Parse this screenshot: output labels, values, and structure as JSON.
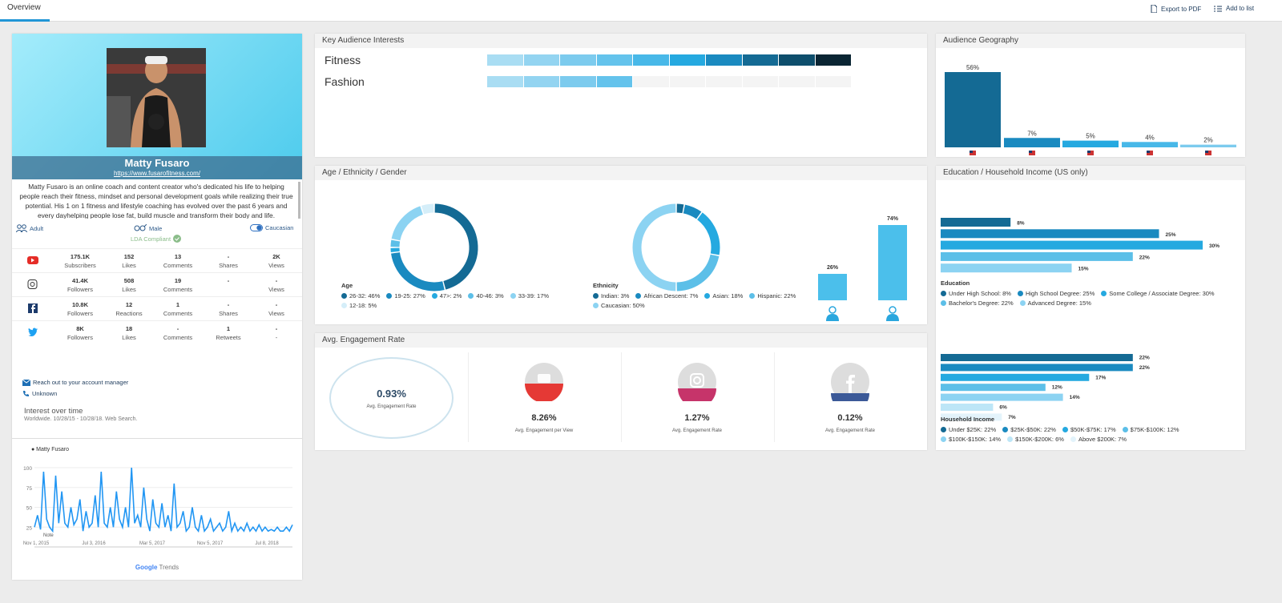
{
  "top": {
    "tab": "Overview",
    "export": "Export to PDF",
    "add": "Add to list"
  },
  "profile": {
    "name": "Matty Fusaro",
    "url": "https://www.fusarofitness.com/",
    "bio": "Matty Fusaro is an online coach and content creator who's dedicated his life to helping people reach their fitness, mindset and personal development goals while realizing their true potential. His 1 on 1 fitness and lifestyle coaching has evolved over the past 6 years and every dayhelping people lose fat, build muscle and transform their body and life.",
    "tag_age": "Adult",
    "tag_gender": "Male",
    "tag_eth": "Caucasian",
    "lda": "LDA Compliant"
  },
  "stats": [
    {
      "platform": "youtube-icon",
      "cells": [
        [
          "175.1K",
          "Subscribers"
        ],
        [
          "152",
          "Likes"
        ],
        [
          "13",
          "Comments"
        ],
        [
          "-",
          "Shares"
        ],
        [
          "2K",
          "Views"
        ]
      ]
    },
    {
      "platform": "instagram-icon",
      "cells": [
        [
          "41.4K",
          "Followers"
        ],
        [
          "508",
          "Likes"
        ],
        [
          "19",
          "Comments"
        ],
        [
          "-",
          ""
        ],
        [
          "-",
          "Views"
        ]
      ]
    },
    {
      "platform": "facebook-icon",
      "cells": [
        [
          "10.8K",
          "Followers"
        ],
        [
          "12",
          "Reactions"
        ],
        [
          "1",
          "Comments"
        ],
        [
          "-",
          "Shares"
        ],
        [
          "-",
          "Views"
        ]
      ]
    },
    {
      "platform": "twitter-icon",
      "cells": [
        [
          "8K",
          "Followers"
        ],
        [
          "18",
          "Likes"
        ],
        [
          "-",
          "Comments"
        ],
        [
          "1",
          "Retweets"
        ],
        [
          "-",
          "-"
        ]
      ]
    }
  ],
  "contact": {
    "manager": "Reach out to your account manager",
    "phone": "Unknown"
  },
  "trends": {
    "title": "Interest over time",
    "info": "Worldwide. 10/28/15 - 10/28/18. Web Search.",
    "legend": "Matty Fusaro",
    "yticks": [
      "100",
      "75",
      "50",
      "25"
    ],
    "note": "Note",
    "xticks": [
      "Nov 1, 2015",
      "Jul 3, 2016",
      "Mar 5, 2017",
      "Nov 5, 2017",
      "Jul 8, 2018"
    ],
    "brand_g": "Google",
    "brand_t": "Trends",
    "chart_data": {
      "type": "line",
      "series": [
        {
          "name": "Matty Fusaro",
          "values": [
            25,
            40,
            22,
            95,
            35,
            25,
            20,
            90,
            30,
            70,
            30,
            25,
            50,
            28,
            35,
            60,
            20,
            45,
            25,
            30,
            65,
            25,
            95,
            30,
            25,
            50,
            25,
            70,
            35,
            25,
            50,
            25,
            100,
            30,
            40,
            25,
            75,
            35,
            20,
            60,
            30,
            25,
            55,
            25,
            40,
            20,
            80,
            25,
            30,
            45,
            20,
            25,
            50,
            25,
            20,
            40,
            20,
            25,
            35,
            20,
            25,
            30,
            20,
            25,
            45,
            20,
            30,
            20,
            25,
            20,
            30,
            20,
            25,
            20,
            28,
            20,
            25,
            20,
            22,
            20,
            25,
            20,
            20,
            25,
            20,
            28
          ]
        }
      ],
      "ylim": [
        0,
        100
      ]
    }
  },
  "interests": {
    "title": "Key Audience Interests",
    "items": [
      {
        "label": "Fitness",
        "level": 10
      },
      {
        "label": "Fashion",
        "level": 4
      }
    ],
    "scale": [
      "#a9ddf3",
      "#93d4f1",
      "#7ccbee",
      "#64c3ec",
      "#48b8e8",
      "#25a9e0",
      "#1a8ac0",
      "#146a94",
      "#0e4e6c",
      "#0a2533"
    ]
  },
  "geo": {
    "title": "Audience Geography",
    "chart_data": {
      "type": "bar",
      "categories": [
        "US",
        "GB",
        "CA",
        "AU",
        "MX"
      ],
      "values": [
        56,
        7,
        5,
        4,
        2
      ],
      "labels": [
        "56%",
        "7%",
        "5%",
        "4%",
        "2%"
      ],
      "colors": [
        "#146a94",
        "#1a8ac0",
        "#25a9e0",
        "#48b8e8",
        "#7ccbee"
      ]
    }
  },
  "age": {
    "title": "Age / Ethnicity / Gender",
    "age_title": "Age",
    "age_chart": {
      "type": "pie",
      "values": [
        46,
        27,
        2,
        3,
        17,
        5
      ],
      "colors": [
        "#146a94",
        "#1a8ac0",
        "#25a9e0",
        "#5cbfe8",
        "#8cd3f2",
        "#d5eef9"
      ]
    },
    "age_legend": [
      "26-32: 46%",
      "19-25: 27%",
      "47>: 2%",
      "40-46: 3%",
      "33-39: 17%",
      "12-18: 5%"
    ],
    "eth_title": "Ethnicity",
    "eth_chart": {
      "type": "pie",
      "values": [
        3,
        7,
        18,
        22,
        50
      ],
      "colors": [
        "#146a94",
        "#1a8ac0",
        "#25a9e0",
        "#5cbfe8",
        "#8cd3f2"
      ]
    },
    "eth_legend": [
      "Indian: 3%",
      "African Descent: 7%",
      "Asian: 18%",
      "Hispanic: 22%",
      "Caucasian: 50%"
    ],
    "gender_chart": {
      "type": "bar",
      "categories": [
        "Female",
        "Male"
      ],
      "values": [
        26,
        74
      ]
    },
    "gender_labels": [
      "26%",
      "74%"
    ]
  },
  "eng": {
    "title": "Avg. Engagement Rate",
    "main": "0.93%",
    "main_label": "Avg. Engagement Rate",
    "items": [
      {
        "icon": "youtube-icon",
        "value": "8.26%",
        "label": "Avg. Engagement per View",
        "fill": "#e53935"
      },
      {
        "icon": "instagram-icon",
        "value": "1.27%",
        "label": "Avg. Engagement Rate",
        "fill": "#c6346a"
      },
      {
        "icon": "facebook-icon",
        "value": "0.12%",
        "label": "Avg. Engagement Rate",
        "fill": "#3b5998"
      }
    ]
  },
  "edu": {
    "title": "Education / Household Income (US only)",
    "edu_title": "Education",
    "edu_chart": {
      "type": "bar",
      "values": [
        8,
        25,
        30,
        22,
        15
      ],
      "labels": [
        "8%",
        "25%",
        "30%",
        "22%",
        "15%"
      ],
      "colors": [
        "#146a94",
        "#1a8ac0",
        "#25a9e0",
        "#5cbfe8",
        "#8cd3f2"
      ]
    },
    "edu_legend": [
      "Under High School: 8%",
      "High School Degree: 25%",
      "Some College / Associate Degree: 30%",
      "Bachelor's Degree: 22%",
      "Advanced Degree: 15%"
    ],
    "inc_title": "Household Income",
    "inc_chart": {
      "type": "bar",
      "values": [
        22,
        22,
        17,
        12,
        14,
        6,
        7
      ],
      "labels": [
        "22%",
        "22%",
        "17%",
        "12%",
        "14%",
        "6%",
        "7%"
      ],
      "colors": [
        "#146a94",
        "#1a8ac0",
        "#25a9e0",
        "#5cbfe8",
        "#8cd3f2",
        "#bde6f7",
        "#e3f3fb"
      ]
    },
    "inc_legend": [
      "Under $25K: 22%",
      "$25K-$50K: 22%",
      "$50K-$75K: 17%",
      "$75K-$100K: 12%",
      "$100K-$150K: 14%",
      "$150K-$200K: 6%",
      "Above $200K: 7%"
    ]
  }
}
